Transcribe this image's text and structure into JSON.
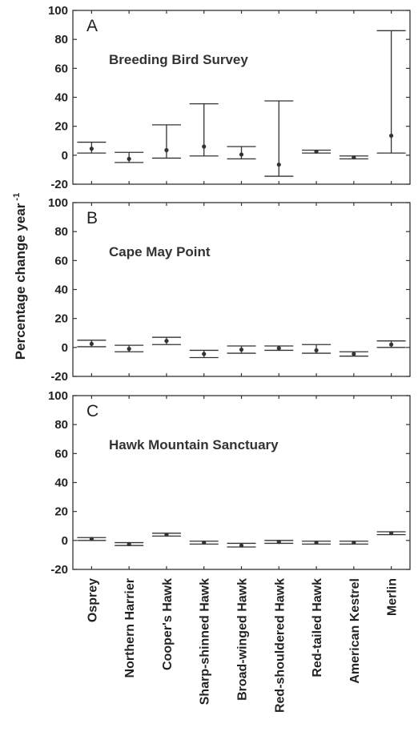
{
  "chart_data": {
    "type": "errorbar",
    "ylabel": "Percentage change year",
    "ylabel_superscript": "-1",
    "categories": [
      "Osprey",
      "Northern Harrier",
      "Cooper's Hawk",
      "Sharp-shinned Hawk",
      "Broad-winged Hawk",
      "Red-shouldered Hawk",
      "Red-tailed Hawk",
      "American Kestrel",
      "Merlin"
    ],
    "yticks": [
      -20,
      0,
      20,
      40,
      60,
      80,
      100
    ],
    "ylim": [
      -20,
      100
    ],
    "grid": false,
    "panels": [
      {
        "letter": "A",
        "title": "Breeding Bird Survey",
        "series": [
          {
            "estimate": 4.5,
            "lower": 1.5,
            "upper": 9
          },
          {
            "estimate": -2.5,
            "lower": -5,
            "upper": 2
          },
          {
            "estimate": 3.5,
            "lower": -2,
            "upper": 21
          },
          {
            "estimate": 6,
            "lower": -0.5,
            "upper": 35.5
          },
          {
            "estimate": 0.5,
            "lower": -2.5,
            "upper": 6
          },
          {
            "estimate": -6.5,
            "lower": -14.5,
            "upper": 37.5
          },
          {
            "estimate": 2.5,
            "lower": 1.5,
            "upper": 3.5
          },
          {
            "estimate": -1.5,
            "lower": -2.5,
            "upper": -0.5
          },
          {
            "estimate": 13.5,
            "lower": 1.5,
            "upper": 86
          }
        ]
      },
      {
        "letter": "B",
        "title": "Cape May Point",
        "series": [
          {
            "estimate": 2.5,
            "lower": 0.5,
            "upper": 5
          },
          {
            "estimate": -1,
            "lower": -3,
            "upper": 1.5
          },
          {
            "estimate": 4.5,
            "lower": 2,
            "upper": 7
          },
          {
            "estimate": -4.5,
            "lower": -7,
            "upper": -2
          },
          {
            "estimate": -1.5,
            "lower": -4,
            "upper": 1
          },
          {
            "estimate": -0.5,
            "lower": -2,
            "upper": 1
          },
          {
            "estimate": -2,
            "lower": -4,
            "upper": 2
          },
          {
            "estimate": -4.5,
            "lower": -6,
            "upper": -3
          },
          {
            "estimate": 2,
            "lower": 0,
            "upper": 4.5
          }
        ]
      },
      {
        "letter": "C",
        "title": "Hawk Mountain Sanctuary",
        "series": [
          {
            "estimate": 1,
            "lower": 0,
            "upper": 2
          },
          {
            "estimate": -2.5,
            "lower": -3.5,
            "upper": -1.5
          },
          {
            "estimate": 4,
            "lower": 3,
            "upper": 5
          },
          {
            "estimate": -1.5,
            "lower": -2.5,
            "upper": -0.5
          },
          {
            "estimate": -3.5,
            "lower": -4.5,
            "upper": -2
          },
          {
            "estimate": -1,
            "lower": -2,
            "upper": 0
          },
          {
            "estimate": -1.5,
            "lower": -2.5,
            "upper": -0.5
          },
          {
            "estimate": -1.5,
            "lower": -2.5,
            "upper": -0.5
          },
          {
            "estimate": 5,
            "lower": 4,
            "upper": 6
          }
        ]
      }
    ]
  }
}
